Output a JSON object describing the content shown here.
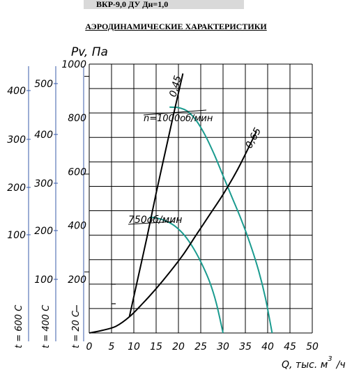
{
  "header": {
    "title": "ВКР-9,0 ДУ Дн=1,0"
  },
  "chart_data": {
    "type": "line",
    "title": "АЭРОДИНАМИЧЕСКИЕ ХАРАКТЕРИСТИКИ",
    "xlabel": "Q, тыс. м³/ч",
    "ylabel": "Pv, Па",
    "xlim": [
      0,
      50
    ],
    "ylim": [
      0,
      1000
    ],
    "grid": true,
    "x_ticks": [
      "0",
      "5",
      "10",
      "15",
      "20",
      "25",
      "30",
      "35",
      "40",
      "45",
      "50"
    ],
    "y_ticks": [
      "200",
      "400",
      "600",
      "800",
      "1000"
    ],
    "secondary_axes": [
      {
        "label": "t = 400 С",
        "ticks": [
          "100",
          "200",
          "300",
          "400",
          "500"
        ]
      },
      {
        "label": "t = 600 С",
        "ticks": [
          "100",
          "200",
          "300",
          "400"
        ]
      }
    ],
    "primary_axis_label": "t = 20 С",
    "series": [
      {
        "name": "n=1000об/мин",
        "color": "#1a9b8f",
        "points": [
          [
            18,
            840
          ],
          [
            20,
            838
          ],
          [
            22,
            825
          ],
          [
            24,
            790
          ],
          [
            26,
            735
          ],
          [
            28,
            665
          ],
          [
            30,
            585
          ],
          [
            32,
            505
          ],
          [
            34,
            425
          ],
          [
            36,
            335
          ],
          [
            38,
            230
          ],
          [
            39.5,
            130
          ],
          [
            41,
            0
          ]
        ]
      },
      {
        "name": "750об/мин",
        "color": "#1a9b8f",
        "points": [
          [
            13.5,
            430
          ],
          [
            15,
            428
          ],
          [
            17,
            418
          ],
          [
            19,
            400
          ],
          [
            21,
            370
          ],
          [
            23,
            325
          ],
          [
            25,
            265
          ],
          [
            27,
            190
          ],
          [
            28.5,
            110
          ],
          [
            30,
            0
          ]
        ]
      },
      {
        "name": "0,45",
        "color": "#000000",
        "points": [
          [
            9,
            60
          ],
          [
            11,
            210
          ],
          [
            13,
            360
          ],
          [
            15,
            520
          ],
          [
            17,
            670
          ],
          [
            19,
            820
          ],
          [
            21,
            965
          ]
        ]
      },
      {
        "name": "0,65",
        "color": "#000000",
        "points": [
          [
            0,
            0
          ],
          [
            3,
            10
          ],
          [
            6,
            25
          ],
          [
            9,
            60
          ],
          [
            12,
            110
          ],
          [
            15,
            165
          ],
          [
            18,
            225
          ],
          [
            21,
            290
          ],
          [
            24,
            365
          ],
          [
            27,
            440
          ],
          [
            30,
            515
          ],
          [
            33,
            600
          ],
          [
            35,
            665
          ],
          [
            37.5,
            750
          ]
        ]
      }
    ]
  }
}
